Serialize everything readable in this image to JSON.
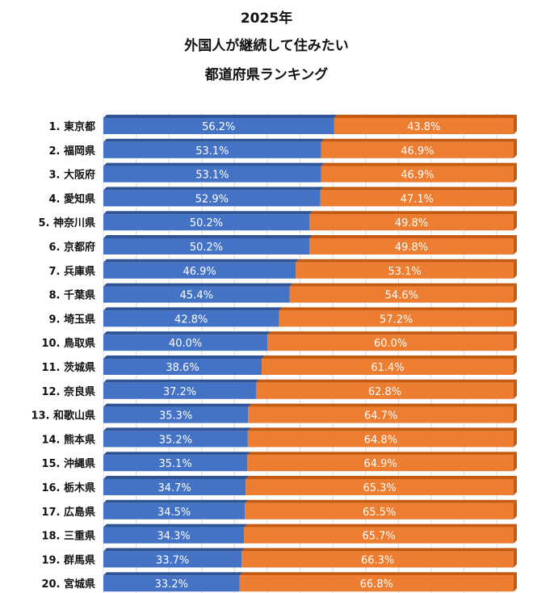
{
  "chart_data": {
    "type": "bar",
    "orientation": "horizontal",
    "stacked": "100%",
    "title_lines": [
      "2025年",
      "外国人が継続して住みたい",
      "都道府県ランキング"
    ],
    "categories": [
      "1. 東京都",
      "2. 福岡県",
      "3. 大阪府",
      "4. 愛知県",
      "5. 神奈川県",
      "6. 京都府",
      "7. 兵庫県",
      "8. 千葉県",
      "9. 埼玉県",
      "10. 鳥取県",
      "11. 茨城県",
      "12. 奈良県",
      "13. 和歌山県",
      "14. 熊本県",
      "15. 沖縄県",
      "16. 栃木県",
      "17. 広島県",
      "18. 三重県",
      "19. 群馬県",
      "20. 宮城県"
    ],
    "series": [
      {
        "values": [
          56.2,
          53.1,
          53.1,
          52.9,
          50.2,
          50.2,
          46.9,
          45.4,
          42.8,
          40.0,
          38.6,
          37.2,
          35.3,
          35.2,
          35.1,
          34.7,
          34.5,
          34.3,
          33.7,
          33.2
        ],
        "color": "#4472c4"
      },
      {
        "values": [
          43.8,
          46.9,
          46.9,
          47.1,
          49.8,
          49.8,
          53.1,
          54.6,
          57.2,
          60.0,
          61.4,
          62.8,
          64.7,
          64.8,
          64.9,
          65.3,
          65.5,
          65.7,
          66.3,
          66.8
        ],
        "color": "#ed7d31"
      }
    ],
    "xlim": [
      0,
      100
    ],
    "grid": true,
    "legend": "none",
    "data_labels": true,
    "style": "3d"
  }
}
